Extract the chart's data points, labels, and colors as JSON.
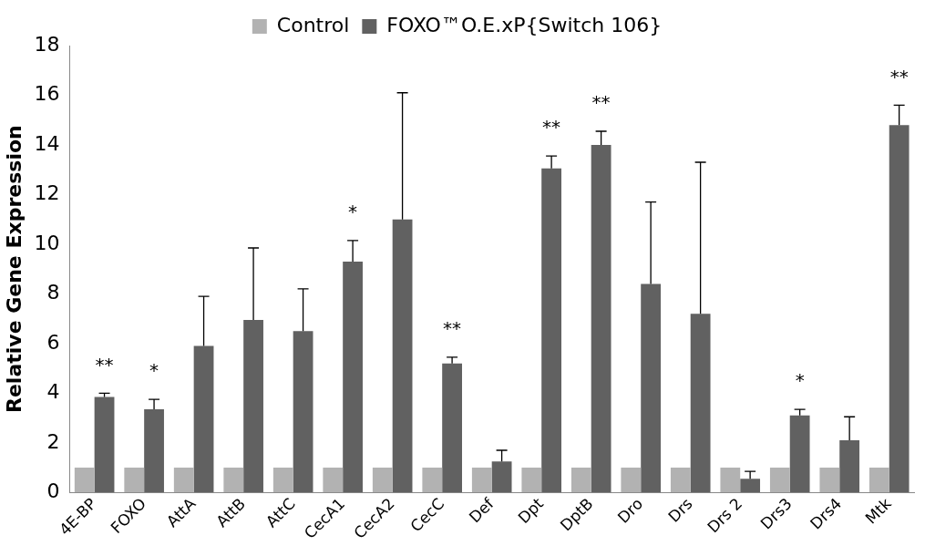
{
  "chart_data": {
    "type": "bar",
    "ylabel": "Relative Gene Expression",
    "categories": [
      "4E-BP",
      "FOXO",
      "AttA",
      "AttB",
      "AttC",
      "CecA1",
      "CecA2",
      "CecC",
      "Def",
      "Dpt",
      "DptB",
      "Dro",
      "Drs",
      "Drs 2",
      "Drs3",
      "Drs4",
      "Mtk"
    ],
    "series": [
      {
        "name": "Control",
        "color": "#b2b2b2",
        "values": [
          1,
          1,
          1,
          1,
          1,
          1,
          1,
          1,
          1,
          1,
          1,
          1,
          1,
          1,
          1,
          1,
          1
        ]
      },
      {
        "name": "FOXO™O.E.xP{Switch 106}",
        "color": "#616161",
        "values": [
          3.85,
          3.35,
          5.9,
          6.95,
          6.5,
          9.3,
          11.0,
          5.2,
          1.25,
          13.05,
          14.0,
          8.4,
          7.2,
          0.55,
          3.1,
          2.1,
          14.8
        ],
        "errors": [
          [
            3.85,
            4.0
          ],
          [
            3.35,
            3.75
          ],
          [
            5.9,
            7.9
          ],
          [
            6.95,
            9.85
          ],
          [
            6.5,
            8.2
          ],
          [
            9.3,
            10.15
          ],
          [
            11.0,
            16.1
          ],
          [
            5.2,
            5.45
          ],
          [
            1.25,
            1.7
          ],
          [
            13.05,
            13.55
          ],
          [
            14.0,
            14.55
          ],
          [
            8.4,
            11.7
          ],
          [
            7.2,
            13.3
          ],
          [
            0.55,
            0.85
          ],
          [
            3.1,
            3.35
          ],
          [
            2.1,
            3.05
          ],
          [
            14.8,
            15.6
          ]
        ]
      }
    ],
    "ylim": [
      0,
      18
    ],
    "yticks": [
      0,
      2,
      4,
      6,
      8,
      10,
      12,
      14,
      16,
      18
    ],
    "grid": false,
    "legend": "top",
    "annotations": [
      {
        "text": "**",
        "x": "4E-BP",
        "y": 4.0
      },
      {
        "text": "*",
        "x": "FOXO",
        "y": 3.75
      },
      {
        "text": "*",
        "x": "CecA1",
        "y": 10.15
      },
      {
        "text": "**",
        "x": "CecC",
        "y": 5.45
      },
      {
        "text": "**",
        "x": "Dpt",
        "y": 13.55
      },
      {
        "text": "**",
        "x": "DptB",
        "y": 14.55
      },
      {
        "text": "*",
        "x": "Drs3",
        "y": 3.35
      },
      {
        "text": "**",
        "x": "Mtk",
        "y": 15.6
      }
    ]
  }
}
